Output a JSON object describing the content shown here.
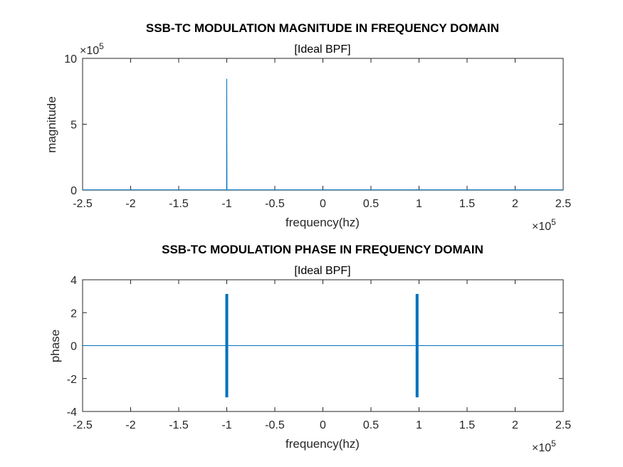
{
  "chart_data": [
    {
      "type": "line",
      "title": "SSB-TC MODULATION MAGNITUDE IN FREQUENCY DOMAIN",
      "subtitle": "[Ideal BPF]",
      "xlabel": "frequency(hz)",
      "ylabel": "magnitude",
      "xlim": [
        -250000,
        250000
      ],
      "ylim": [
        0,
        1000000
      ],
      "xticks": [
        -250000,
        -200000,
        -150000,
        -100000,
        -50000,
        0,
        50000,
        100000,
        150000,
        200000,
        250000
      ],
      "xtick_labels": [
        "-2.5",
        "-2",
        "-1.5",
        "-1",
        "-0.5",
        "0",
        "0.5",
        "1",
        "1.5",
        "2",
        "2.5"
      ],
      "yticks": [
        0,
        500000,
        1000000
      ],
      "ytick_labels": [
        "0",
        "5",
        "10"
      ],
      "x_exponent": "×10",
      "x_exponent_power": "5",
      "y_exponent": "×10",
      "y_exponent_power": "5",
      "color": "#0072bd",
      "series": [
        {
          "x": [
            -250000,
            -100200,
            -100000,
            -99800,
            97000,
            97200,
            97400,
            250000
          ],
          "y": [
            2000,
            2000,
            845000,
            2000,
            2000,
            4000,
            2000,
            2000
          ]
        }
      ]
    },
    {
      "type": "line",
      "title": "SSB-TC MODULATION PHASE IN FREQUENCY DOMAIN",
      "subtitle": "[Ideal BPF]",
      "xlabel": "frequency(hz)",
      "ylabel": "phase",
      "xlim": [
        -250000,
        250000
      ],
      "ylim": [
        -4,
        4
      ],
      "xticks": [
        -250000,
        -200000,
        -150000,
        -100000,
        -50000,
        0,
        50000,
        100000,
        150000,
        200000,
        250000
      ],
      "xtick_labels": [
        "-2.5",
        "-2",
        "-1.5",
        "-1",
        "-0.5",
        "0",
        "0.5",
        "1",
        "1.5",
        "2",
        "2.5"
      ],
      "yticks": [
        -4,
        -2,
        0,
        2,
        4
      ],
      "ytick_labels": [
        "-4",
        "-2",
        "0",
        "2",
        "4"
      ],
      "x_exponent": "×10",
      "x_exponent_power": "5",
      "color": "#0072bd",
      "baseline": 0,
      "bands": [
        {
          "x_start": -101500,
          "x_end": -98500,
          "y_min": -3.14,
          "y_max": 3.14
        },
        {
          "x_start": 96500,
          "x_end": 99500,
          "y_min": -3.14,
          "y_max": 3.14
        }
      ]
    }
  ]
}
